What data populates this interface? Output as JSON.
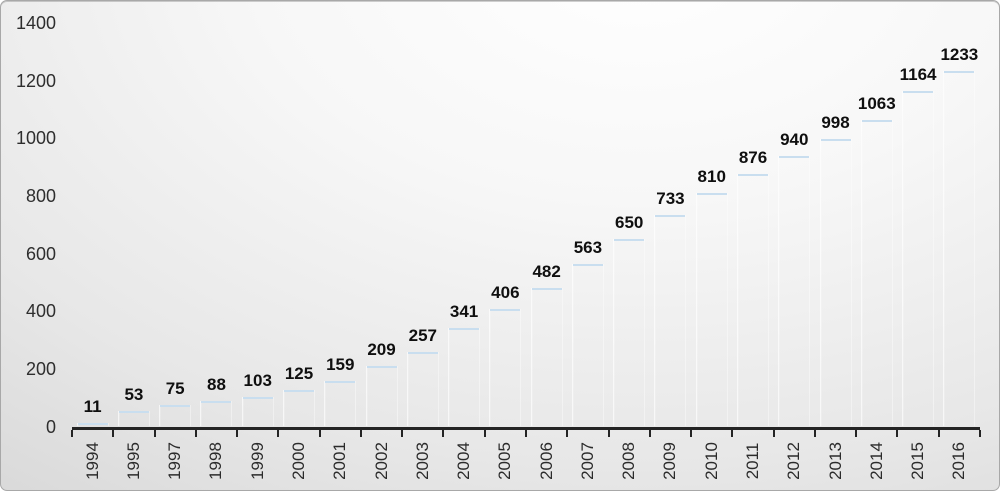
{
  "chart_data": {
    "type": "bar",
    "title": "",
    "xlabel": "",
    "ylabel": "",
    "categories": [
      "1994",
      "1995",
      "1997",
      "1998",
      "1999",
      "2000",
      "2001",
      "2002",
      "2003",
      "2004",
      "2005",
      "2006",
      "2007",
      "2008",
      "2009",
      "2010",
      "2011",
      "2012",
      "2013",
      "2014",
      "2015",
      "2016"
    ],
    "values": [
      11,
      53,
      75,
      88,
      103,
      125,
      159,
      209,
      257,
      341,
      406,
      482,
      563,
      650,
      733,
      810,
      876,
      940,
      998,
      1063,
      1164,
      1233
    ],
    "data_labels_shown": true,
    "ylim": [
      0,
      1400
    ],
    "yticks": [
      0,
      200,
      400,
      600,
      800,
      1000,
      1200,
      1400
    ],
    "grid": false,
    "legend_position": "none",
    "colors": {
      "bar_main": "#4a86bb",
      "bar_gradient_left": "#619cd0",
      "bar_gradient_right": "#2b5d8a",
      "bar_top_edge": "#c9deef",
      "axis": "#242424",
      "tick_label": "#2e2e2e",
      "data_label": "#0f0f0f",
      "background_light": "#ffffff",
      "background_dark": "#c9c9c9"
    }
  }
}
